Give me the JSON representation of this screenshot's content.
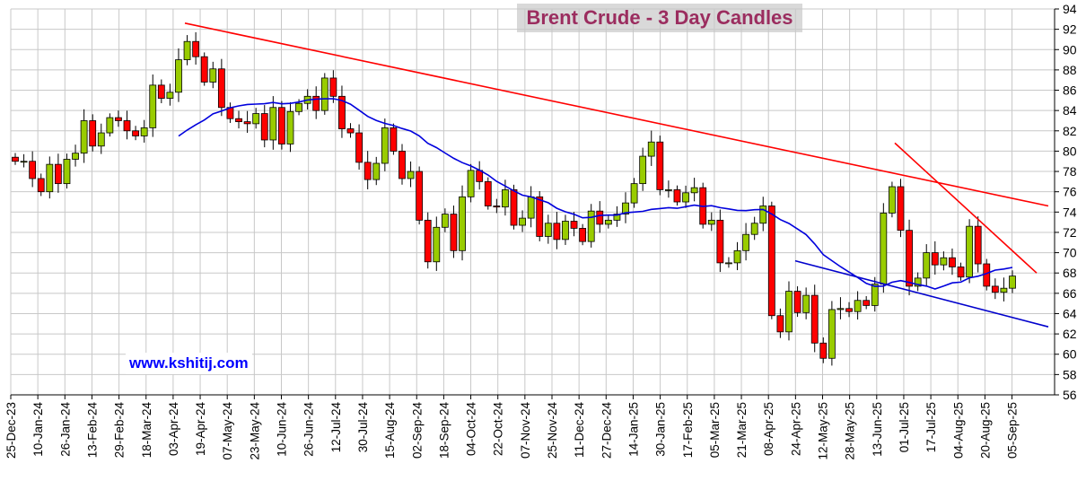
{
  "chart_data": {
    "type": "candlestick",
    "title": "Brent Crude - 3 Day Candles",
    "watermark": "www.kshitij.com",
    "y_axis": {
      "position": "right",
      "ylim": [
        56,
        94
      ],
      "ticks": [
        56,
        58,
        60,
        62,
        64,
        66,
        68,
        70,
        72,
        74,
        76,
        78,
        80,
        82,
        84,
        86,
        88,
        90,
        92,
        94
      ]
    },
    "x_axis": {
      "tick_labels": [
        "25-Dec-23",
        "10-Jan-24",
        "26-Jan-24",
        "13-Feb-24",
        "29-Feb-24",
        "18-Mar-24",
        "03-Apr-24",
        "19-Apr-24",
        "07-May-24",
        "23-May-24",
        "10-Jun-24",
        "26-Jun-24",
        "12-Jul-24",
        "30-Jul-24",
        "15-Aug-24",
        "02-Sep-24",
        "18-Sep-24",
        "04-Oct-24",
        "22-Oct-24",
        "07-Nov-24",
        "25-Nov-24",
        "11-Dec-24",
        "27-Dec-24",
        "14-Jan-25",
        "30-Jan-25",
        "17-Feb-25",
        "05-Mar-25",
        "21-Mar-25",
        "08-Apr-25",
        "24-Apr-25",
        "12-May-25",
        "28-May-25",
        "13-Jun-25",
        "01-Jul-25",
        "17-Jul-25",
        "04-Aug-25",
        "20-Aug-25",
        "05-Sep-25"
      ]
    },
    "grid": true,
    "colors": {
      "up": "#99cc00",
      "down": "#ff0000",
      "ma": "#0000dd",
      "trend": "#ff0000",
      "support": "#0000cc",
      "grid": "#c8c8c8",
      "title_bg": "#d9d9d9",
      "title_text": "#9b2d5f",
      "watermark": "#0000ff"
    },
    "close_series": [
      79,
      79,
      77.3,
      76,
      78.7,
      76.8,
      79.2,
      79.8,
      83,
      80.5,
      81.8,
      83.3,
      83,
      82,
      81.5,
      82.3,
      86.5,
      85.2,
      85.8,
      89,
      90.8,
      89.3,
      86.8,
      88.1,
      84.3,
      83.2,
      82.9,
      82.7,
      83.7,
      81.1,
      84.3,
      80.7,
      83.9,
      84.7,
      85.4,
      84,
      87.2,
      85.4,
      82.2,
      81.8,
      78.9,
      77.2,
      78.8,
      82.3,
      80,
      77.3,
      78,
      73.2,
      69.1,
      72.5,
      73.8,
      70.2,
      75.5,
      78.1,
      77,
      74.6,
      74.5,
      76.2,
      72.7,
      73.4,
      75.5,
      71.6,
      72.9,
      71.3,
      73.1,
      72.4,
      71.1,
      74.1,
      72.8,
      73.2,
      73.8,
      74.9,
      76.8,
      79.5,
      80.9,
      76.2,
      76.2,
      75,
      75.9,
      76.4,
      72.8,
      73.2,
      69,
      69,
      70.2,
      71.8,
      72.9,
      74.6,
      63.8,
      62.2,
      66.2,
      64.1,
      65.8,
      61.1,
      59.6,
      64.4,
      64.5,
      64.2,
      65.3,
      64.8,
      66.9,
      73.9,
      76.5,
      72.2,
      66.7,
      67.5,
      70,
      68.8,
      69.5,
      68.6,
      67.6,
      72.6,
      68.9,
      66.7,
      66.1,
      66.5,
      67.7
    ]
  }
}
